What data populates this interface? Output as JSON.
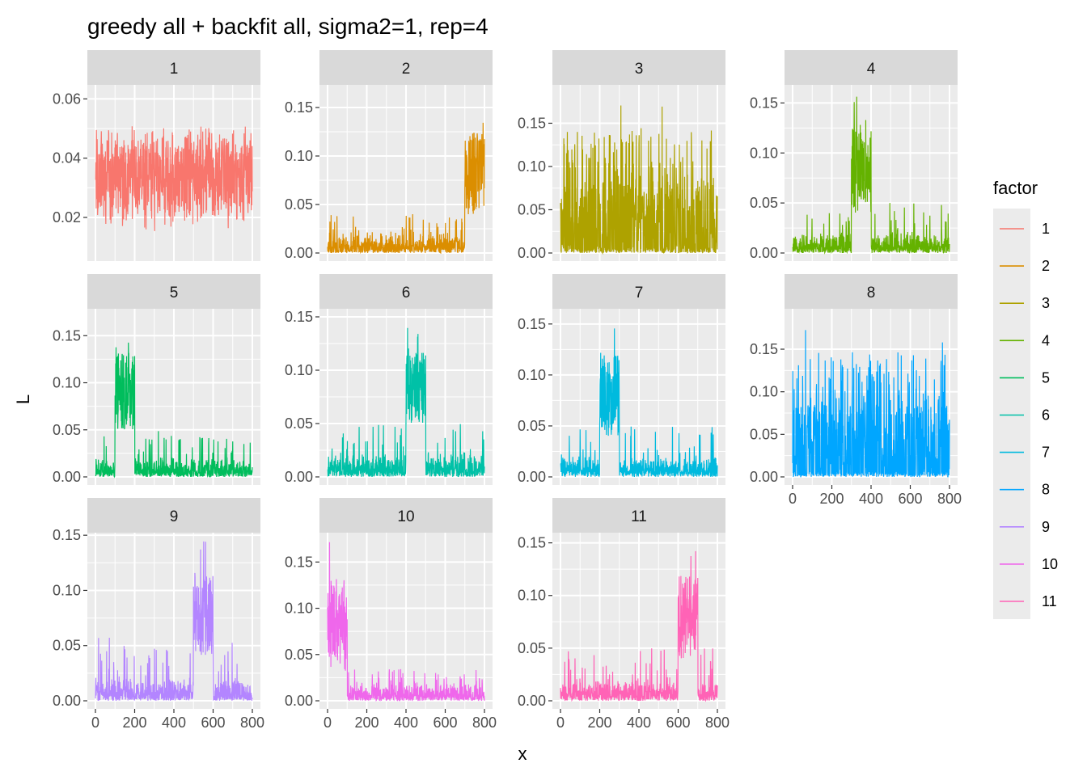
{
  "chart_data": {
    "type": "line",
    "title": "greedy all + backfit all, sigma2=1, rep=4",
    "xlabel": "x",
    "ylabel": "L",
    "grid": true,
    "legend": {
      "title": "factor",
      "placement": "right",
      "entries": [
        "1",
        "2",
        "3",
        "4",
        "5",
        "6",
        "7",
        "8",
        "9",
        "10",
        "11"
      ]
    },
    "facets": [
      {
        "label": "1",
        "color": "#F8766D",
        "xlim": [
          0,
          800
        ],
        "ylim": [
          0.008,
          0.062
        ],
        "yticks": [
          0.02,
          0.04,
          0.06
        ],
        "ytick_labels": [
          "0.02",
          "0.04",
          "0.06"
        ],
        "pattern": {
          "kind": "noise",
          "base": 0.034,
          "amp": 0.027,
          "min": 0.009
        }
      },
      {
        "label": "2",
        "color": "#DB8E00",
        "xlim": [
          0,
          800
        ],
        "ylim": [
          0,
          0.165
        ],
        "yticks": [
          0,
          0.05,
          0.1,
          0.15
        ],
        "ytick_labels": [
          "0.00",
          "0.05",
          "0.10",
          "0.15"
        ],
        "pattern": {
          "kind": "block",
          "from": 700,
          "to": 800,
          "high": 0.16,
          "highMin": 0.04,
          "low": 0.02,
          "lowMax": 0.04
        }
      },
      {
        "label": "3",
        "color": "#AEA200",
        "xlim": [
          0,
          800
        ],
        "ylim": [
          0,
          0.185
        ],
        "yticks": [
          0,
          0.05,
          0.1,
          0.15
        ],
        "ytick_labels": [
          "0.00",
          "0.05",
          "0.10",
          "0.15"
        ],
        "pattern": {
          "kind": "spikes",
          "max": 0.185
        }
      },
      {
        "label": "4",
        "color": "#64B200",
        "xlim": [
          0,
          800
        ],
        "ylim": [
          0,
          0.16
        ],
        "yticks": [
          0,
          0.05,
          0.1,
          0.15
        ],
        "ytick_labels": [
          "0.00",
          "0.05",
          "0.10",
          "0.15"
        ],
        "pattern": {
          "kind": "block",
          "from": 300,
          "to": 400,
          "high": 0.16,
          "highMin": 0.04,
          "low": 0.02,
          "lowMax": 0.05
        }
      },
      {
        "label": "5",
        "color": "#00BD5C",
        "xlim": [
          0,
          800
        ],
        "ylim": [
          0,
          0.17
        ],
        "yticks": [
          0,
          0.05,
          0.1,
          0.15
        ],
        "ytick_labels": [
          "0.00",
          "0.05",
          "0.10",
          "0.15"
        ],
        "pattern": {
          "kind": "block",
          "from": 100,
          "to": 200,
          "high": 0.17,
          "highMin": 0.05,
          "low": 0.02,
          "lowMax": 0.05
        }
      },
      {
        "label": "6",
        "color": "#00C1A7",
        "xlim": [
          0,
          800
        ],
        "ylim": [
          0,
          0.15
        ],
        "yticks": [
          0,
          0.05,
          0.1,
          0.15
        ],
        "ytick_labels": [
          "0.00",
          "0.05",
          "0.10",
          "0.15"
        ],
        "pattern": {
          "kind": "block",
          "from": 400,
          "to": 500,
          "high": 0.15,
          "highMin": 0.05,
          "low": 0.02,
          "lowMax": 0.05
        }
      },
      {
        "label": "7",
        "color": "#00BADE",
        "xlim": [
          0,
          800
        ],
        "ylim": [
          0,
          0.157
        ],
        "yticks": [
          0,
          0.05,
          0.1,
          0.15
        ],
        "ytick_labels": [
          "0.00",
          "0.05",
          "0.10",
          "0.15"
        ],
        "pattern": {
          "kind": "block",
          "from": 200,
          "to": 300,
          "high": 0.157,
          "highMin": 0.04,
          "low": 0.02,
          "lowMax": 0.05
        }
      },
      {
        "label": "8",
        "color": "#00A6FF",
        "xlim": [
          0,
          800
        ],
        "ylim": [
          0,
          0.188
        ],
        "yticks": [
          0,
          0.05,
          0.1,
          0.15
        ],
        "ytick_labels": [
          "0.00",
          "0.05",
          "0.10",
          "0.15"
        ],
        "pattern": {
          "kind": "spikes",
          "max": 0.188
        }
      },
      {
        "label": "9",
        "color": "#B385FF",
        "xlim": [
          0,
          800
        ],
        "ylim": [
          0,
          0.145
        ],
        "yticks": [
          0,
          0.05,
          0.1,
          0.15
        ],
        "ytick_labels": [
          "0.00",
          "0.05",
          "0.10",
          "0.15"
        ],
        "pattern": {
          "kind": "block",
          "from": 500,
          "to": 600,
          "high": 0.145,
          "highMin": 0.04,
          "low": 0.02,
          "lowMax": 0.058
        }
      },
      {
        "label": "10",
        "color": "#EF67EB",
        "xlim": [
          0,
          800
        ],
        "ylim": [
          0,
          0.173
        ],
        "yticks": [
          0,
          0.05,
          0.1,
          0.15
        ],
        "ytick_labels": [
          "0.00",
          "0.05",
          "0.10",
          "0.15"
        ],
        "pattern": {
          "kind": "block",
          "from": 0,
          "to": 100,
          "high": 0.173,
          "highMin": 0.03,
          "low": 0.02,
          "lowMax": 0.035
        }
      },
      {
        "label": "11",
        "color": "#FF63B6",
        "xlim": [
          0,
          800
        ],
        "ylim": [
          0,
          0.152
        ],
        "yticks": [
          0,
          0.05,
          0.1,
          0.15
        ],
        "ytick_labels": [
          "0.00",
          "0.05",
          "0.10",
          "0.15"
        ],
        "pattern": {
          "kind": "block",
          "from": 600,
          "to": 700,
          "high": 0.152,
          "highMin": 0.04,
          "low": 0.02,
          "lowMax": 0.05
        }
      }
    ],
    "xticks": [
      0,
      200,
      400,
      600,
      800
    ],
    "xtick_labels": [
      "0",
      "200",
      "400",
      "600",
      "800"
    ]
  }
}
